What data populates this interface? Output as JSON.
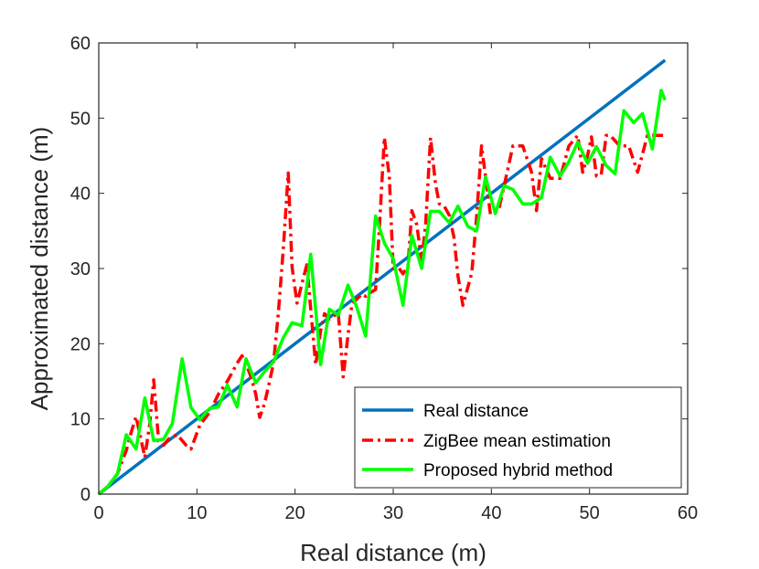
{
  "chart_data": {
    "type": "line",
    "title": "",
    "xlabel": "Real distance (m)",
    "ylabel": "Approximated distance (m)",
    "xlim": [
      0,
      60
    ],
    "ylim": [
      0,
      60
    ],
    "xticks": [
      0,
      10,
      20,
      30,
      40,
      50,
      60
    ],
    "yticks": [
      0,
      10,
      20,
      30,
      40,
      50,
      60
    ],
    "grid": false,
    "legend_position": "bottom-right",
    "series": [
      {
        "name": "Real distance",
        "color": "#0072BD",
        "style": "solid",
        "x": [
          0,
          57.7
        ],
        "y": [
          0,
          57.7
        ]
      },
      {
        "name": "ZigBee mean estimation",
        "color": "#FF0000",
        "style": "dashdot",
        "x": [
          0,
          0.9,
          1.9,
          2.8,
          3.3,
          3.8,
          4.7,
          5.2,
          5.6,
          6.1,
          6.6,
          7.1,
          7.5,
          8.0,
          8.9,
          9.4,
          10.3,
          11.3,
          12.2,
          13.1,
          14.1,
          14.6,
          15.0,
          15.5,
          16.0,
          16.4,
          16.9,
          17.4,
          17.8,
          18.3,
          18.8,
          19.3,
          19.7,
          20.2,
          21.2,
          22.1,
          22.6,
          23.0,
          23.5,
          24.4,
          24.9,
          25.4,
          25.8,
          26.8,
          27.2,
          27.7,
          28.2,
          28.6,
          29.1,
          29.6,
          30.0,
          30.5,
          31.0,
          31.5,
          31.9,
          32.4,
          32.9,
          33.3,
          33.8,
          34.3,
          34.7,
          35.2,
          35.7,
          36.2,
          36.6,
          37.1,
          37.6,
          38.0,
          38.5,
          39.0,
          39.4,
          39.9,
          40.4,
          40.8,
          41.3,
          42.2,
          43.2,
          44.1,
          44.6,
          45.1,
          46.0,
          47.0,
          47.9,
          48.8,
          49.3,
          49.8,
          50.2,
          50.7,
          51.2,
          51.7,
          52.1,
          53.1,
          54.0,
          54.9,
          55.9,
          56.8,
          57.7
        ],
        "y": [
          0,
          1.0,
          2.7,
          5.8,
          8.2,
          10.3,
          4.9,
          9.4,
          15.2,
          7.0,
          6.5,
          7.3,
          7.6,
          7.9,
          6.5,
          6.0,
          9.2,
          10.9,
          13.3,
          15.0,
          17.4,
          18.4,
          17.4,
          15.6,
          13.3,
          10.2,
          12.1,
          15.0,
          17.4,
          24.1,
          32.6,
          42.7,
          30.2,
          25.4,
          30.5,
          17.2,
          21.7,
          24.0,
          23.3,
          24.1,
          15.6,
          21.2,
          25.3,
          26.6,
          26.3,
          26.8,
          27.2,
          35.6,
          47.4,
          42.3,
          30.0,
          30.2,
          29.3,
          30.3,
          37.7,
          35.8,
          31.0,
          35.8,
          47.4,
          41.3,
          38.6,
          38.3,
          37.1,
          34.1,
          29.0,
          25.1,
          27.5,
          29.4,
          36.9,
          46.3,
          42.3,
          37.2,
          37.4,
          38.1,
          41.0,
          46.3,
          46.3,
          42.8,
          37.7,
          44.6,
          42.0,
          42.0,
          46.3,
          47.7,
          42.8,
          45.0,
          47.5,
          42.3,
          42.5,
          47.7,
          47.7,
          46.3,
          46.3,
          42.8,
          47.7,
          47.7,
          47.7
        ]
      },
      {
        "name": "Proposed hybrid method",
        "color": "#00FF00",
        "style": "solid",
        "x": [
          0,
          0.9,
          1.9,
          2.8,
          3.8,
          4.7,
          5.6,
          6.6,
          7.5,
          8.5,
          9.4,
          10.3,
          11.3,
          12.2,
          13.1,
          14.1,
          15.0,
          16.0,
          16.9,
          17.8,
          18.8,
          19.7,
          20.7,
          21.6,
          22.6,
          23.5,
          24.4,
          25.4,
          26.3,
          27.2,
          28.2,
          29.1,
          30.0,
          31.0,
          31.9,
          32.9,
          33.8,
          34.7,
          35.7,
          36.6,
          37.6,
          38.5,
          39.4,
          40.4,
          41.3,
          42.2,
          43.2,
          44.1,
          45.1,
          46.0,
          47.0,
          47.9,
          48.8,
          49.8,
          50.7,
          51.7,
          52.6,
          53.5,
          54.5,
          55.4,
          56.4,
          57.3,
          57.7
        ],
        "y": [
          0,
          1.0,
          2.7,
          7.9,
          6.0,
          12.8,
          7.1,
          7.3,
          9.4,
          18.0,
          11.5,
          9.9,
          11.4,
          11.6,
          14.5,
          11.6,
          18.0,
          14.8,
          16.3,
          17.6,
          20.8,
          22.8,
          22.4,
          31.9,
          17.2,
          24.6,
          23.8,
          27.8,
          24.8,
          21.0,
          37.0,
          33.4,
          31.3,
          25.1,
          34.4,
          30.0,
          37.6,
          37.6,
          36.1,
          38.3,
          35.6,
          35.0,
          42.2,
          37.3,
          41.0,
          40.5,
          38.6,
          38.6,
          39.4,
          44.8,
          42.3,
          44.2,
          46.8,
          44.0,
          46.2,
          43.7,
          42.6,
          51.0,
          49.4,
          50.6,
          45.9,
          53.7,
          52.4
        ]
      }
    ]
  }
}
